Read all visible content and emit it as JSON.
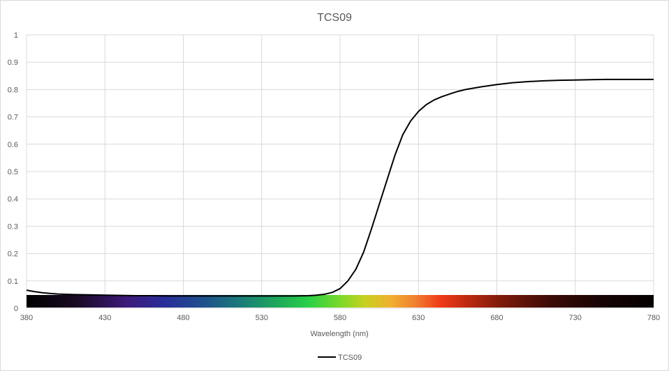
{
  "chart_data": {
    "type": "line",
    "title": "TCS09",
    "xlabel": "Wavelength (nm)",
    "ylabel": "",
    "xlim": [
      380,
      780
    ],
    "ylim": [
      0,
      1
    ],
    "x_ticks": [
      "380",
      "430",
      "480",
      "530",
      "580",
      "630",
      "680",
      "730",
      "780"
    ],
    "y_ticks": [
      "0",
      "0.1",
      "0.2",
      "0.3",
      "0.4",
      "0.5",
      "0.6",
      "0.7",
      "0.8",
      "0.9",
      "1"
    ],
    "grid": true,
    "legend_position": "bottom",
    "spectrum_bar": true,
    "series": [
      {
        "name": "TCS09",
        "color": "#000000",
        "x": [
          380,
          385,
          390,
          395,
          400,
          410,
          420,
          430,
          440,
          450,
          460,
          470,
          480,
          490,
          500,
          510,
          520,
          530,
          540,
          550,
          560,
          565,
          570,
          575,
          580,
          585,
          590,
          595,
          600,
          605,
          610,
          615,
          620,
          625,
          630,
          635,
          640,
          645,
          650,
          655,
          660,
          670,
          680,
          690,
          700,
          710,
          720,
          730,
          740,
          750,
          760,
          770,
          780
        ],
        "values": [
          0.066,
          0.061,
          0.057,
          0.054,
          0.052,
          0.05,
          0.049,
          0.048,
          0.047,
          0.046,
          0.046,
          0.045,
          0.045,
          0.045,
          0.045,
          0.045,
          0.045,
          0.045,
          0.045,
          0.045,
          0.046,
          0.048,
          0.051,
          0.058,
          0.072,
          0.1,
          0.142,
          0.205,
          0.29,
          0.38,
          0.47,
          0.56,
          0.635,
          0.685,
          0.72,
          0.745,
          0.762,
          0.774,
          0.784,
          0.793,
          0.8,
          0.81,
          0.818,
          0.825,
          0.829,
          0.832,
          0.834,
          0.835,
          0.836,
          0.837,
          0.837,
          0.837,
          0.837
        ]
      }
    ]
  }
}
